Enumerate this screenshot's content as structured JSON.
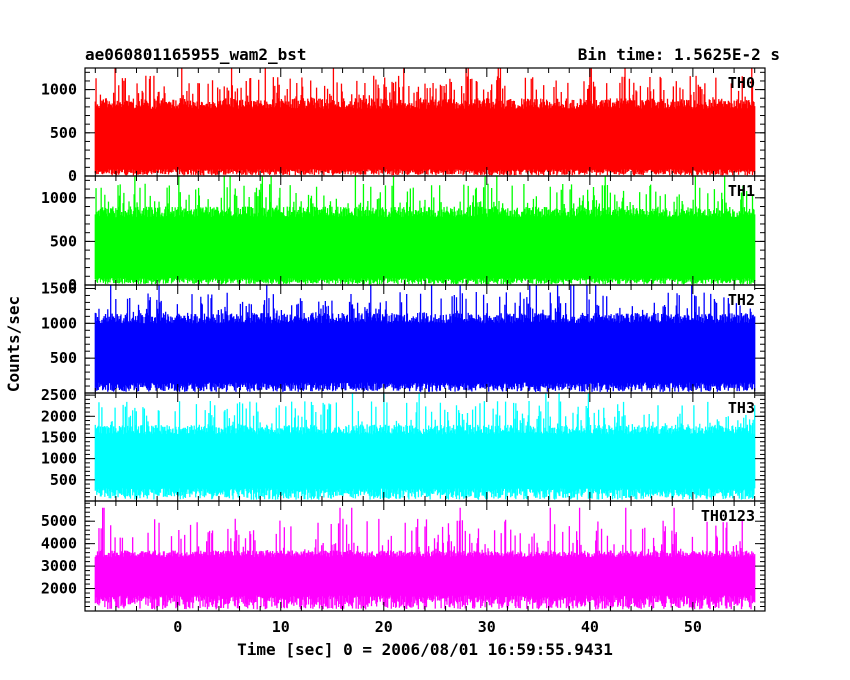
{
  "chart_data": {
    "type": "line",
    "title_left": "ae060801165955_wam2_bst",
    "title_right": "Bin time: 1.5625E-2 s",
    "xlabel": "Time [sec] 0 = 2006/08/01 16:59:55.9431",
    "ylabel": "Counts/sec",
    "xlim": [
      -9,
      57
    ],
    "x_ticks": [
      0,
      10,
      20,
      30,
      40,
      50
    ],
    "x_data_range": [
      -8,
      56
    ],
    "bin_time_s": 0.015625,
    "grid": false,
    "legend": "none",
    "panels": [
      {
        "name": "TH0",
        "color": "#ff0000",
        "ylim": [
          0,
          1250
        ],
        "y_ticks": [
          0,
          500,
          1000
        ],
        "typical_low": 80,
        "typical_high": 900,
        "spike_max": 1250
      },
      {
        "name": "TH1",
        "color": "#00ff00",
        "ylim": [
          0,
          1250
        ],
        "y_ticks": [
          0,
          500,
          1000
        ],
        "typical_low": 80,
        "typical_high": 900,
        "spike_max": 1250
      },
      {
        "name": "TH2",
        "color": "#0000ff",
        "ylim": [
          0,
          1550
        ],
        "y_ticks": [
          500,
          1000,
          1500
        ],
        "typical_low": 150,
        "typical_high": 1150,
        "spike_max": 1550
      },
      {
        "name": "TH3",
        "color": "#00ffff",
        "ylim": [
          0,
          2550
        ],
        "y_ticks": [
          500,
          1000,
          1500,
          2000,
          2500
        ],
        "typical_low": 300,
        "typical_high": 1800,
        "spike_max": 2550
      },
      {
        "name": "TH0123",
        "color": "#ff00ff",
        "ylim": [
          1000,
          5900
        ],
        "y_ticks": [
          2000,
          3000,
          4000,
          5000
        ],
        "typical_low": 1700,
        "typical_high": 3700,
        "spike_max": 5600
      }
    ]
  }
}
